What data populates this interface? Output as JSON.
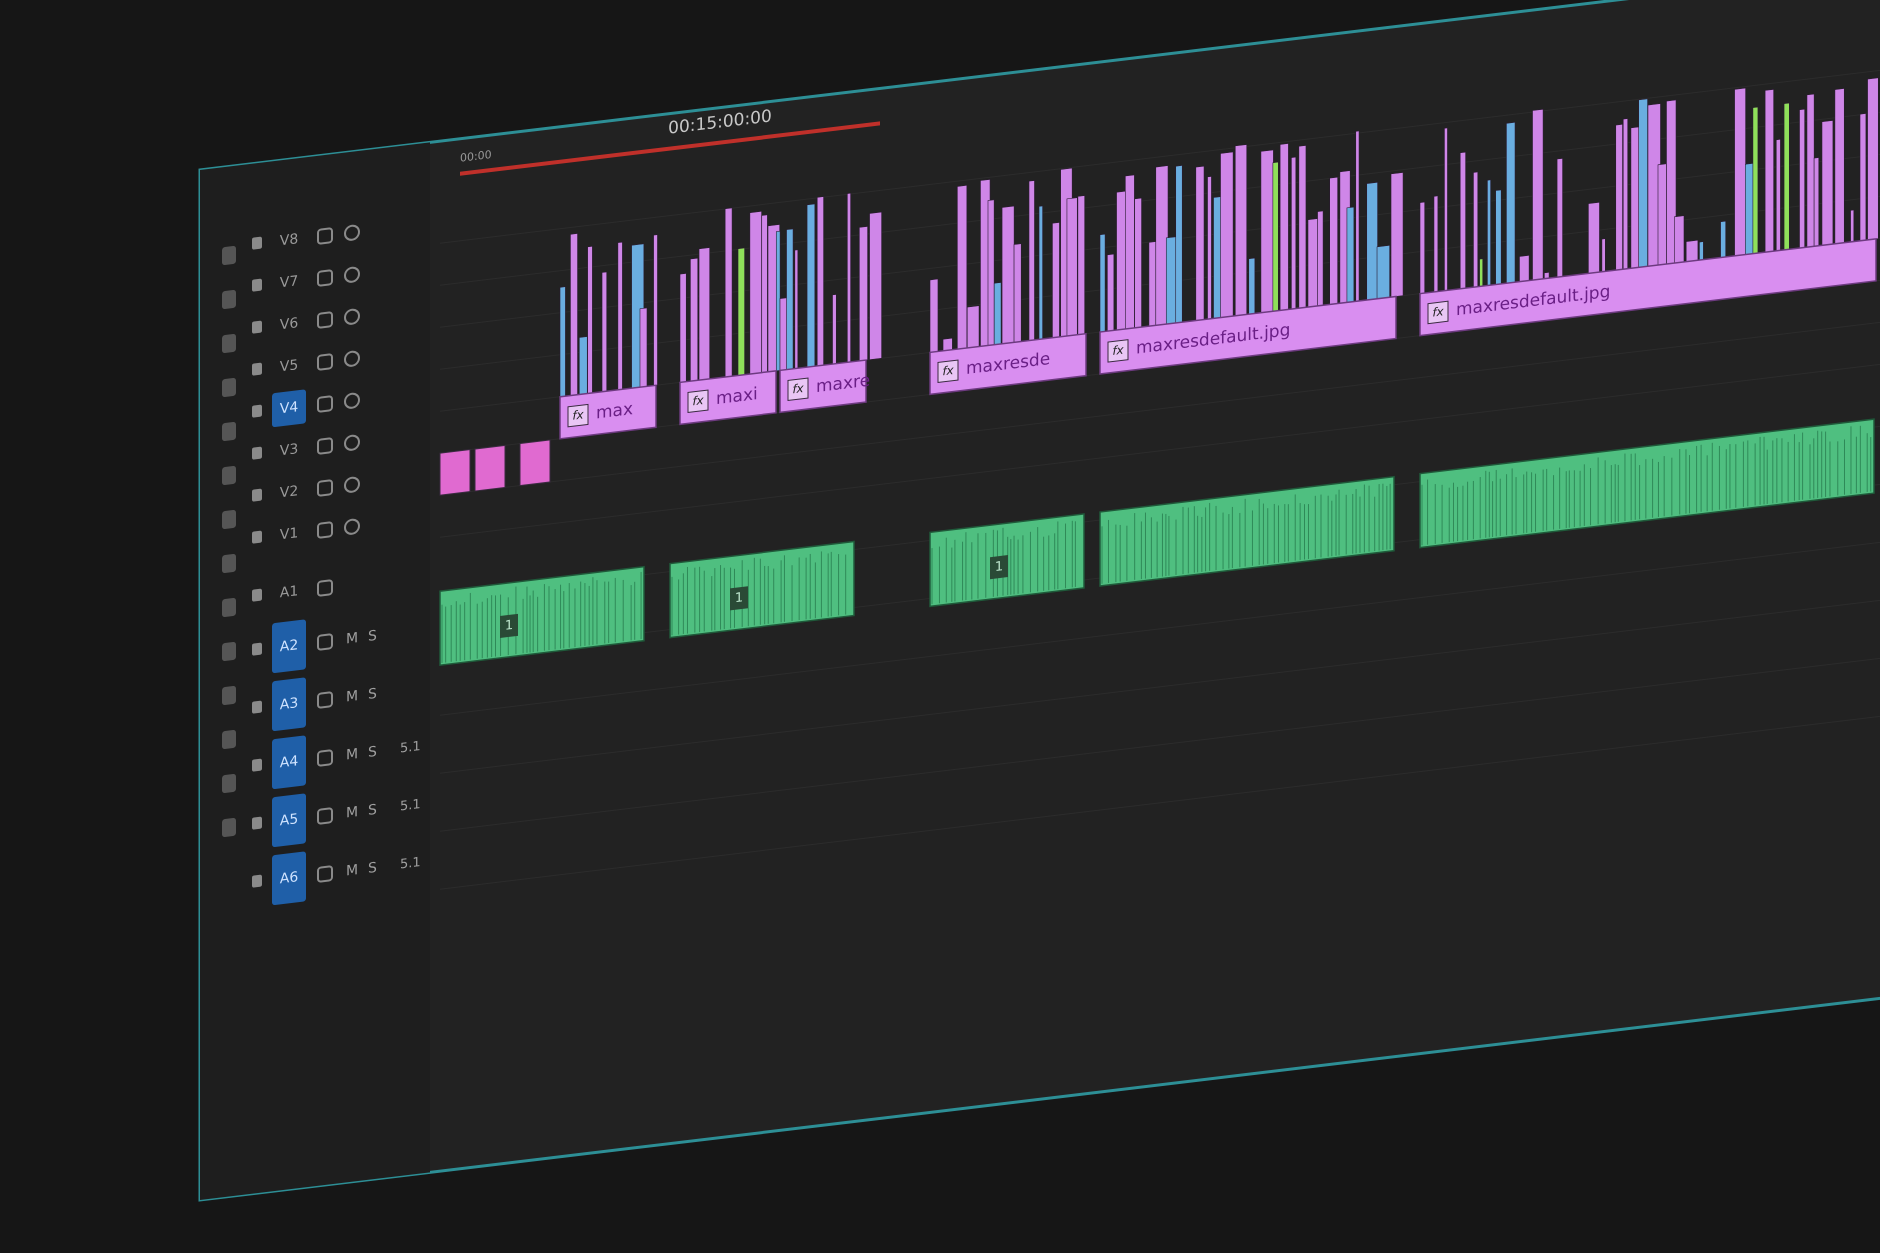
{
  "timeline": {
    "timecode": "00:15:00:00",
    "ruler_start": "00:00"
  },
  "video_tracks": [
    "V8",
    "V7",
    "V6",
    "V5",
    "V4",
    "V3",
    "V2",
    "V1"
  ],
  "audio_tracks": [
    "A1",
    "A2",
    "A3",
    "A4",
    "A5",
    "A6"
  ],
  "buttons": {
    "mute": "M",
    "solo": "S",
    "channel": "5.1"
  },
  "clips": [
    "max",
    "maxi",
    "maxre",
    "maxresde",
    "maxresdefault.jpg",
    "maxresdefault.jpg"
  ],
  "fx_badge": "fx",
  "audio_badge": "1"
}
